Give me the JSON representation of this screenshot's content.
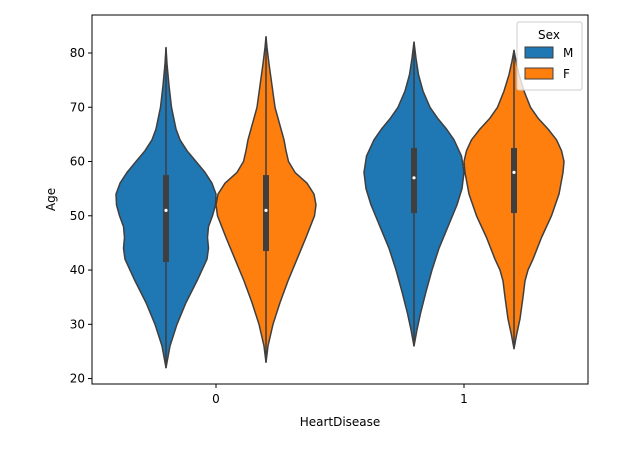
{
  "chart_data": {
    "type": "violin",
    "xlabel": "HeartDisease",
    "ylabel": "Age",
    "categories": [
      "0",
      "1"
    ],
    "ylim": [
      19,
      87
    ],
    "yticks": [
      20,
      30,
      40,
      50,
      60,
      70,
      80
    ],
    "grid": false,
    "legend": {
      "title": "Sex",
      "position": "top-right",
      "entries": [
        {
          "label": "M",
          "color": "#1f77b4"
        },
        {
          "label": "F",
          "color": "#ff7f0e"
        }
      ]
    },
    "series": [
      {
        "name": "M",
        "color": "#1f77b4",
        "violins": [
          {
            "category": "0",
            "median": 51,
            "q1": 41.5,
            "q3": 57.5,
            "min": 22,
            "max": 81,
            "density": [
              [
                22,
                0.0
              ],
              [
                26,
                0.08
              ],
              [
                30,
                0.22
              ],
              [
                34,
                0.4
              ],
              [
                38,
                0.62
              ],
              [
                42,
                0.82
              ],
              [
                44,
                0.85
              ],
              [
                46,
                0.83
              ],
              [
                48,
                0.85
              ],
              [
                50,
                0.93
              ],
              [
                52,
                0.99
              ],
              [
                54,
                1.0
              ],
              [
                56,
                0.92
              ],
              [
                58,
                0.78
              ],
              [
                60,
                0.6
              ],
              [
                62,
                0.42
              ],
              [
                64,
                0.28
              ],
              [
                66,
                0.2
              ],
              [
                70,
                0.11
              ],
              [
                74,
                0.06
              ],
              [
                78,
                0.02
              ],
              [
                81,
                0.0
              ]
            ]
          },
          {
            "category": "1",
            "median": 57,
            "q1": 50.5,
            "q3": 62.5,
            "min": 26,
            "max": 82,
            "density": [
              [
                26,
                0.0
              ],
              [
                29,
                0.06
              ],
              [
                32,
                0.13
              ],
              [
                36,
                0.24
              ],
              [
                40,
                0.36
              ],
              [
                44,
                0.5
              ],
              [
                48,
                0.68
              ],
              [
                52,
                0.86
              ],
              [
                55,
                0.96
              ],
              [
                58,
                1.0
              ],
              [
                61,
                0.95
              ],
              [
                64,
                0.8
              ],
              [
                66,
                0.65
              ],
              [
                68,
                0.47
              ],
              [
                70,
                0.32
              ],
              [
                73,
                0.18
              ],
              [
                76,
                0.09
              ],
              [
                79,
                0.04
              ],
              [
                82,
                0.0
              ]
            ]
          }
        ]
      },
      {
        "name": "F",
        "color": "#ff7f0e",
        "violins": [
          {
            "category": "0",
            "median": 51,
            "q1": 43.5,
            "q3": 57.5,
            "min": 23,
            "max": 83,
            "density": [
              [
                23,
                0.0
              ],
              [
                26,
                0.04
              ],
              [
                30,
                0.14
              ],
              [
                34,
                0.28
              ],
              [
                38,
                0.44
              ],
              [
                42,
                0.62
              ],
              [
                46,
                0.8
              ],
              [
                50,
                0.97
              ],
              [
                52,
                1.0
              ],
              [
                54,
                0.96
              ],
              [
                56,
                0.82
              ],
              [
                58,
                0.58
              ],
              [
                60,
                0.45
              ],
              [
                62,
                0.4
              ],
              [
                64,
                0.36
              ],
              [
                66,
                0.3
              ],
              [
                70,
                0.18
              ],
              [
                74,
                0.12
              ],
              [
                78,
                0.06
              ],
              [
                81,
                0.02
              ],
              [
                83,
                0.0
              ]
            ]
          },
          {
            "category": "1",
            "median": 58,
            "q1": 50.5,
            "q3": 62.5,
            "min": 25.5,
            "max": 80.5,
            "density": [
              [
                25.5,
                0.0
              ],
              [
                28,
                0.05
              ],
              [
                31,
                0.12
              ],
              [
                35,
                0.18
              ],
              [
                38,
                0.22
              ],
              [
                40,
                0.28
              ],
              [
                42,
                0.38
              ],
              [
                46,
                0.55
              ],
              [
                50,
                0.75
              ],
              [
                54,
                0.9
              ],
              [
                58,
                0.98
              ],
              [
                60,
                1.0
              ],
              [
                62,
                0.95
              ],
              [
                64,
                0.85
              ],
              [
                66,
                0.68
              ],
              [
                68,
                0.48
              ],
              [
                70,
                0.33
              ],
              [
                73,
                0.2
              ],
              [
                76,
                0.1
              ],
              [
                78.5,
                0.04
              ],
              [
                80.5,
                0.0
              ]
            ]
          }
        ]
      }
    ]
  }
}
